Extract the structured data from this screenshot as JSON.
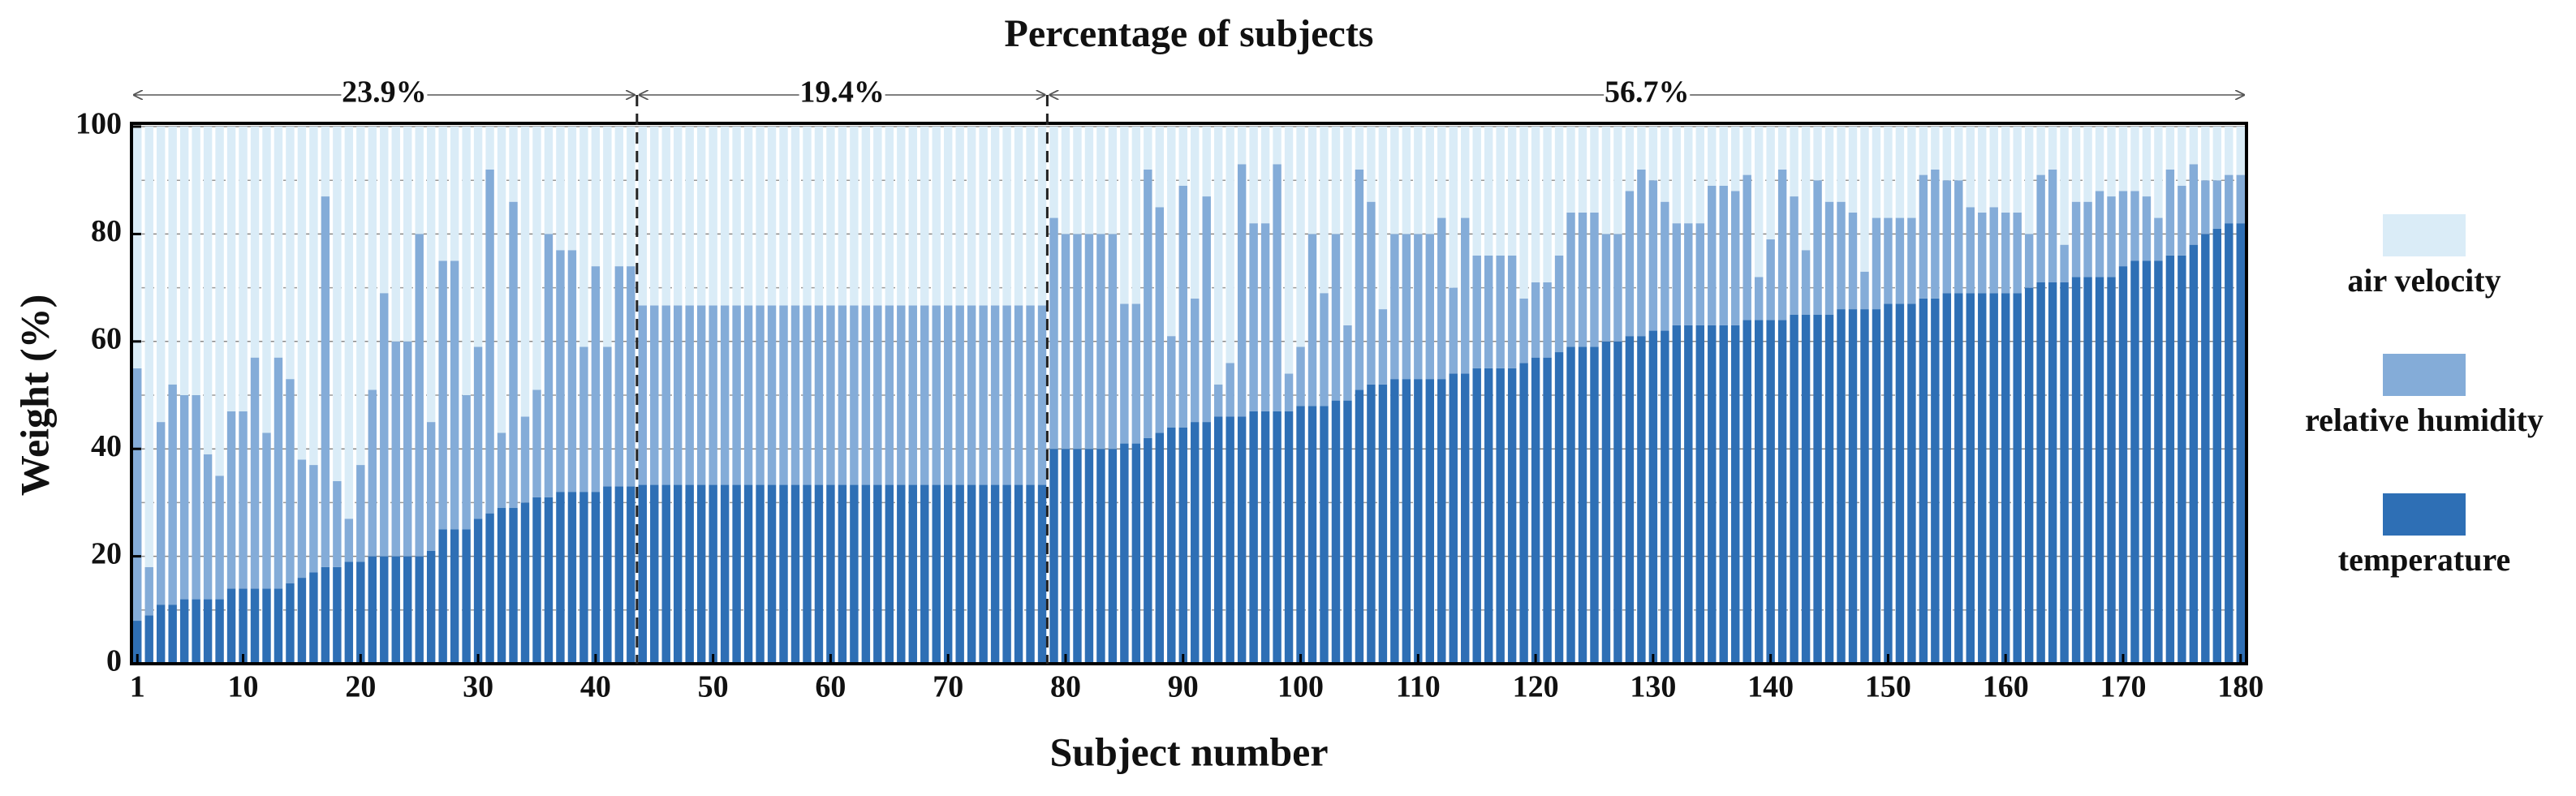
{
  "chart_data": {
    "type": "stacked_bar",
    "title": "Percentage of subjects",
    "x_label": "Subject number",
    "y_label": "Weight (%)",
    "x": [
      1,
      2,
      3,
      4,
      5,
      6,
      7,
      8,
      9,
      10,
      11,
      12,
      13,
      14,
      15,
      16,
      17,
      18,
      19,
      20,
      21,
      22,
      23,
      24,
      25,
      26,
      27,
      28,
      29,
      30,
      31,
      32,
      33,
      34,
      35,
      36,
      37,
      38,
      39,
      40,
      41,
      42,
      43,
      44,
      45,
      46,
      47,
      48,
      49,
      50,
      51,
      52,
      53,
      54,
      55,
      56,
      57,
      58,
      59,
      60,
      61,
      62,
      63,
      64,
      65,
      66,
      67,
      68,
      69,
      70,
      71,
      72,
      73,
      74,
      75,
      76,
      77,
      78,
      79,
      80,
      81,
      82,
      83,
      84,
      85,
      86,
      87,
      88,
      89,
      90,
      91,
      92,
      93,
      94,
      95,
      96,
      97,
      98,
      99,
      100,
      101,
      102,
      103,
      104,
      105,
      106,
      107,
      108,
      109,
      110,
      111,
      112,
      113,
      114,
      115,
      116,
      117,
      118,
      119,
      120,
      121,
      122,
      123,
      124,
      125,
      126,
      127,
      128,
      129,
      130,
      131,
      132,
      133,
      134,
      135,
      136,
      137,
      138,
      139,
      140,
      141,
      142,
      143,
      144,
      145,
      146,
      147,
      148,
      149,
      150,
      151,
      152,
      153,
      154,
      155,
      156,
      157,
      158,
      159,
      160,
      161,
      162,
      163,
      164,
      165,
      166,
      167,
      168,
      169,
      170,
      171,
      172,
      173,
      174,
      175,
      176,
      177,
      178,
      179,
      180
    ],
    "xlim": [
      0.5,
      180.5
    ],
    "xticks": [
      1,
      10,
      20,
      30,
      40,
      50,
      60,
      70,
      80,
      90,
      100,
      110,
      120,
      130,
      140,
      150,
      160,
      170,
      180
    ],
    "ylim": [
      0,
      100
    ],
    "yticks": [
      0,
      20,
      40,
      60,
      80,
      100
    ],
    "minor_yticks": [
      10,
      30,
      50,
      70,
      90
    ],
    "grid": true,
    "legend": "right",
    "sections": [
      {
        "value": 23.9,
        "label": "23.9%"
      },
      {
        "value": 19.4,
        "label": "19.4%"
      },
      {
        "value": 56.7,
        "label": "56.7%"
      }
    ],
    "series": [
      {
        "name": "temperature",
        "color": "#2e6fb5",
        "values": [
          8,
          9,
          11,
          11,
          12,
          12,
          12,
          12,
          14,
          14,
          14,
          14,
          14,
          15,
          16,
          17,
          18,
          18,
          19,
          19,
          20,
          20,
          20,
          20,
          20,
          21,
          25,
          25,
          25,
          27,
          28,
          29,
          29,
          30,
          31,
          31,
          32,
          32,
          32,
          32,
          33,
          33,
          33,
          33.3,
          33.3,
          33.3,
          33.3,
          33.3,
          33.3,
          33.3,
          33.3,
          33.3,
          33.3,
          33.3,
          33.3,
          33.3,
          33.3,
          33.3,
          33.3,
          33.3,
          33.3,
          33.3,
          33.3,
          33.3,
          33.3,
          33.3,
          33.3,
          33.3,
          33.3,
          33.3,
          33.3,
          33.3,
          33.3,
          33.3,
          33.3,
          33.3,
          33.3,
          33.3,
          40,
          40,
          40,
          40,
          40,
          40,
          41,
          41,
          42,
          43,
          44,
          44,
          45,
          45,
          46,
          46,
          46,
          47,
          47,
          47,
          47,
          48,
          48,
          48,
          49,
          49,
          51,
          52,
          52,
          53,
          53,
          53,
          53,
          53,
          54,
          54,
          55,
          55,
          55,
          55,
          56,
          57,
          57,
          58,
          59,
          59,
          59,
          60,
          60,
          61,
          61,
          62,
          62,
          63,
          63,
          63,
          63,
          63,
          63,
          64,
          64,
          64,
          64,
          65,
          65,
          65,
          65,
          66,
          66,
          66,
          66,
          67,
          67,
          67,
          68,
          68,
          69,
          69,
          69,
          69,
          69,
          69,
          69,
          70,
          71,
          71,
          71,
          72,
          72,
          72,
          72,
          74,
          75,
          75,
          75,
          76,
          76,
          78,
          80,
          81,
          82,
          82
        ]
      },
      {
        "name": "relative humidity",
        "color": "#84acd8",
        "values": [
          47,
          9,
          34,
          41,
          38,
          38,
          27,
          23,
          33,
          33,
          43,
          29,
          43,
          38,
          22,
          20,
          69,
          16,
          8,
          18,
          31,
          49,
          40,
          40,
          60,
          24,
          50,
          50,
          25,
          32,
          64,
          14,
          57,
          16,
          20,
          49,
          45,
          45,
          27,
          42,
          26,
          41,
          41,
          33.4,
          33.4,
          33.4,
          33.4,
          33.4,
          33.4,
          33.4,
          33.4,
          33.4,
          33.4,
          33.4,
          33.4,
          33.4,
          33.4,
          33.4,
          33.4,
          33.4,
          33.4,
          33.4,
          33.4,
          33.4,
          33.4,
          33.4,
          33.4,
          33.4,
          33.4,
          33.4,
          33.4,
          33.4,
          33.4,
          33.4,
          33.4,
          33.4,
          33.4,
          33.4,
          43,
          40,
          40,
          40,
          40,
          40,
          26,
          26,
          50,
          42,
          17,
          45,
          23,
          42,
          6,
          10,
          47,
          35,
          35,
          46,
          7,
          11,
          32,
          21,
          31,
          14,
          41,
          34,
          14,
          27,
          27,
          27,
          27,
          30,
          16,
          29,
          21,
          21,
          21,
          21,
          12,
          14,
          14,
          18,
          25,
          25,
          25,
          20,
          20,
          27,
          31,
          28,
          24,
          19,
          19,
          19,
          26,
          26,
          25,
          27,
          8,
          15,
          28,
          22,
          12,
          25,
          21,
          20,
          18,
          7,
          17,
          16,
          16,
          16,
          23,
          24,
          21,
          21,
          16,
          15,
          16,
          15,
          15,
          10,
          20,
          21,
          7,
          14,
          14,
          16,
          15,
          14,
          13,
          12,
          8,
          16,
          13,
          15,
          10,
          9,
          9,
          9
        ]
      },
      {
        "name": "air velocity",
        "color": "#daecf7",
        "values": [
          45,
          82,
          55,
          48,
          50,
          50,
          61,
          65,
          53,
          53,
          43,
          57,
          43,
          47,
          62,
          63,
          13,
          66,
          73,
          63,
          49,
          31,
          40,
          40,
          20,
          55,
          25,
          25,
          50,
          41,
          8,
          57,
          14,
          54,
          49,
          20,
          23,
          23,
          41,
          26,
          41,
          26,
          26,
          33.3,
          33.3,
          33.3,
          33.3,
          33.3,
          33.3,
          33.3,
          33.3,
          33.3,
          33.3,
          33.3,
          33.3,
          33.3,
          33.3,
          33.3,
          33.3,
          33.3,
          33.3,
          33.3,
          33.3,
          33.3,
          33.3,
          33.3,
          33.3,
          33.3,
          33.3,
          33.3,
          33.3,
          33.3,
          33.3,
          33.3,
          33.3,
          33.3,
          33.3,
          33.3,
          17,
          20,
          20,
          20,
          20,
          20,
          33,
          33,
          8,
          15,
          39,
          11,
          32,
          13,
          48,
          44,
          7,
          18,
          18,
          7,
          46,
          41,
          20,
          31,
          20,
          37,
          8,
          14,
          34,
          20,
          20,
          20,
          20,
          17,
          30,
          17,
          24,
          24,
          24,
          24,
          32,
          29,
          29,
          24,
          16,
          16,
          16,
          20,
          20,
          12,
          8,
          10,
          14,
          18,
          18,
          18,
          11,
          11,
          12,
          9,
          28,
          21,
          8,
          13,
          23,
          10,
          14,
          14,
          16,
          27,
          17,
          17,
          17,
          17,
          9,
          8,
          10,
          10,
          15,
          16,
          15,
          16,
          16,
          20,
          9,
          8,
          22,
          14,
          14,
          12,
          13,
          12,
          12,
          13,
          17,
          8,
          11,
          7,
          10,
          10,
          9,
          9
        ]
      }
    ]
  }
}
